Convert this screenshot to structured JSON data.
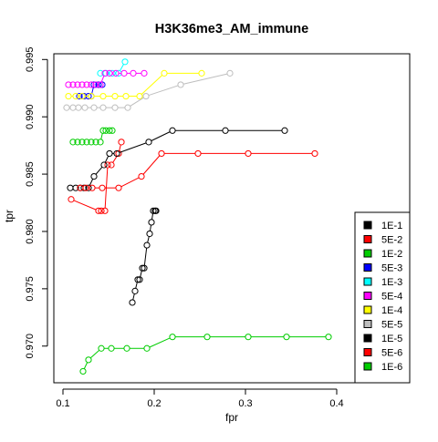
{
  "chart_data": {
    "type": "line",
    "title": "H3K36me3_AM_immune",
    "xlabel": "fpr",
    "ylabel": "tpr",
    "xlim": [
      0.09,
      0.48
    ],
    "ylim": [
      0.9668,
      0.9955
    ],
    "x_ticks": [
      0.1,
      0.2,
      0.3,
      0.4
    ],
    "x_tick_labels": [
      "0.1",
      "0.2",
      "0.3",
      "0.4"
    ],
    "y_ticks": [
      0.97,
      0.975,
      0.98,
      0.985,
      0.99,
      0.995
    ],
    "y_tick_labels": [
      "0.970",
      "0.975",
      "0.980",
      "0.985",
      "0.990",
      "0.995"
    ],
    "grid": false,
    "legend_position": "bottom-right",
    "series": [
      {
        "name": "1E-1",
        "color": "#000000",
        "x": [
          0.176,
          0.179,
          0.182,
          0.184,
          0.187,
          0.189,
          0.192,
          0.195,
          0.197,
          0.199,
          0.201,
          0.202
        ],
        "y": [
          0.9738,
          0.9748,
          0.9758,
          0.9758,
          0.9768,
          0.9768,
          0.9788,
          0.9798,
          0.9808,
          0.9818,
          0.9818,
          0.9818
        ]
      },
      {
        "name": "5E-2",
        "color": "#ff0000",
        "x": [
          0.109,
          0.139,
          0.142,
          0.146,
          0.149,
          0.153,
          0.161,
          0.164
        ],
        "y": [
          0.9828,
          0.9818,
          0.9818,
          0.9818,
          0.9858,
          0.9858,
          0.9868,
          0.9878
        ]
      },
      {
        "name": "1E-2",
        "color": "#00cd00",
        "x": [
          0.111,
          0.116,
          0.121,
          0.126,
          0.131,
          0.136,
          0.141,
          0.144,
          0.147,
          0.151,
          0.154
        ],
        "y": [
          0.9878,
          0.9878,
          0.9878,
          0.9878,
          0.9878,
          0.9878,
          0.9878,
          0.9888,
          0.9888,
          0.9888,
          0.9888
        ]
      },
      {
        "name": "5E-3",
        "color": "#0000ff",
        "x": [
          0.118,
          0.123,
          0.128,
          0.131,
          0.134,
          0.139,
          0.143
        ],
        "y": [
          0.9918,
          0.9918,
          0.9918,
          0.9918,
          0.9928,
          0.9928,
          0.9928
        ]
      },
      {
        "name": "1E-3",
        "color": "#00ffff",
        "x": [
          0.141,
          0.147,
          0.154,
          0.161,
          0.168
        ],
        "y": [
          0.9938,
          0.9938,
          0.9938,
          0.9938,
          0.9948
        ]
      },
      {
        "name": "5E-4",
        "color": "#ff00ff",
        "x": [
          0.106,
          0.111,
          0.116,
          0.121,
          0.126,
          0.131,
          0.136,
          0.141,
          0.146,
          0.151,
          0.158,
          0.167,
          0.177,
          0.189
        ],
        "y": [
          0.9928,
          0.9928,
          0.9928,
          0.9928,
          0.9928,
          0.9928,
          0.9928,
          0.9928,
          0.9938,
          0.9938,
          0.9938,
          0.9938,
          0.9938,
          0.9938
        ]
      },
      {
        "name": "1E-4",
        "color": "#ffff00",
        "x": [
          0.106,
          0.114,
          0.121,
          0.131,
          0.144,
          0.157,
          0.169,
          0.184,
          0.211,
          0.252
        ],
        "y": [
          0.9918,
          0.9918,
          0.9918,
          0.9918,
          0.9918,
          0.9918,
          0.9918,
          0.9918,
          0.9938,
          0.9938
        ]
      },
      {
        "name": "5E-5",
        "color": "#bebebe",
        "x": [
          0.104,
          0.111,
          0.117,
          0.124,
          0.134,
          0.144,
          0.157,
          0.171,
          0.191,
          0.229,
          0.283
        ],
        "y": [
          0.9908,
          0.9908,
          0.9908,
          0.9908,
          0.9908,
          0.9908,
          0.9908,
          0.9908,
          0.9918,
          0.9928,
          0.9938
        ]
      },
      {
        "name": "1E-5",
        "color": "#000000",
        "x": [
          0.108,
          0.114,
          0.119,
          0.123,
          0.128,
          0.134,
          0.145,
          0.151,
          0.159,
          0.194,
          0.22,
          0.278,
          0.343
        ],
        "y": [
          0.9838,
          0.9838,
          0.9838,
          0.9838,
          0.9838,
          0.9848,
          0.9858,
          0.9868,
          0.9868,
          0.9878,
          0.9888,
          0.9888,
          0.9888
        ]
      },
      {
        "name": "5E-6",
        "color": "#ff0000",
        "x": [
          0.119,
          0.125,
          0.132,
          0.143,
          0.161,
          0.186,
          0.208,
          0.248,
          0.303,
          0.376
        ],
        "y": [
          0.9838,
          0.9838,
          0.9838,
          0.9838,
          0.9838,
          0.9848,
          0.9868,
          0.9868,
          0.9868,
          0.9868
        ]
      },
      {
        "name": "1E-6",
        "color": "#00cd00",
        "x": [
          0.122,
          0.128,
          0.142,
          0.153,
          0.17,
          0.192,
          0.22,
          0.258,
          0.303,
          0.345,
          0.391
        ],
        "y": [
          0.9678,
          0.9688,
          0.9698,
          0.9698,
          0.9698,
          0.9698,
          0.9708,
          0.9708,
          0.9708,
          0.9708,
          0.9708
        ]
      }
    ]
  }
}
